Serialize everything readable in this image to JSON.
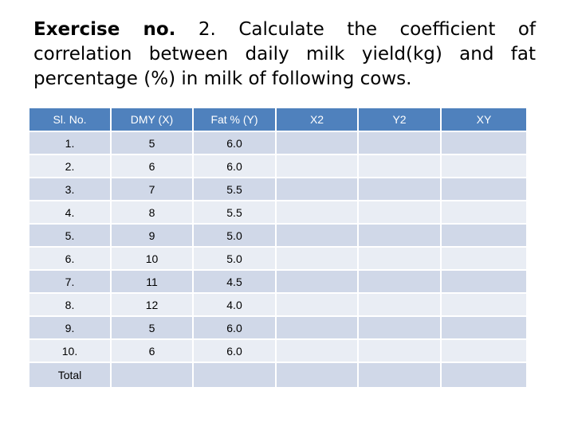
{
  "title": {
    "bold_part": "Exercise no.",
    "rest": " 2. Calculate the coefficient of correlation between daily milk yield(kg) and fat percentage (%) in milk of following cows."
  },
  "table": {
    "headers": [
      "Sl. No.",
      "DMY (X)",
      "Fat % (Y)",
      "X2",
      "Y2",
      "XY"
    ],
    "rows": [
      [
        "1.",
        "5",
        "6.0",
        "",
        "",
        ""
      ],
      [
        "2.",
        "6",
        "6.0",
        "",
        "",
        ""
      ],
      [
        "3.",
        "7",
        "5.5",
        "",
        "",
        ""
      ],
      [
        "4.",
        "8",
        "5.5",
        "",
        "",
        ""
      ],
      [
        "5.",
        "9",
        "5.0",
        "",
        "",
        ""
      ],
      [
        "6.",
        "10",
        "5.0",
        "",
        "",
        ""
      ],
      [
        "7.",
        "11",
        "4.5",
        "",
        "",
        ""
      ],
      [
        "8.",
        "12",
        "4.0",
        "",
        "",
        ""
      ],
      [
        "9.",
        "5",
        "6.0",
        "",
        "",
        ""
      ],
      [
        "10.",
        "6",
        "6.0",
        "",
        "",
        ""
      ]
    ],
    "total_row": [
      "Total",
      "",
      "",
      "",
      "",
      ""
    ]
  },
  "colors": {
    "header_bg": "#4f81bd",
    "row_odd_bg": "#d0d8e8",
    "row_even_bg": "#e9edf4"
  }
}
